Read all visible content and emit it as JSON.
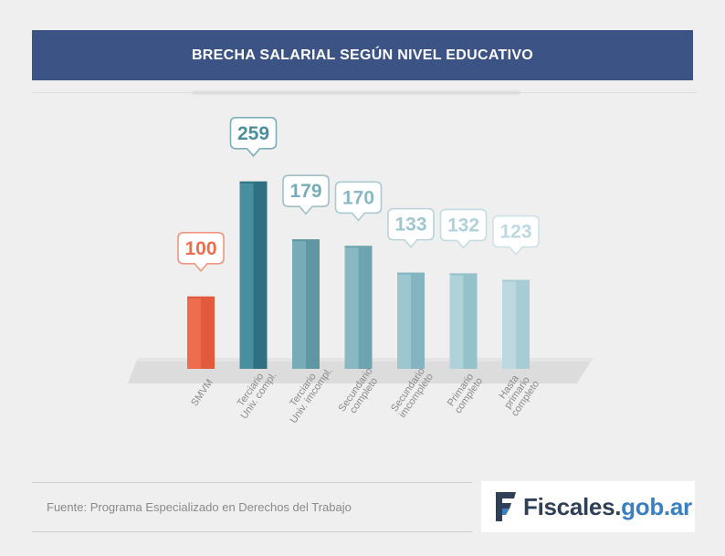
{
  "header": {
    "title": "BRECHA SALARIAL SEGÚN NIVEL EDUCATIVO"
  },
  "chart_data": {
    "type": "bar",
    "title": "BRECHA SALARIAL SEGÚN NIVEL EDUCATIVO",
    "xlabel": "",
    "ylabel": "",
    "categories": [
      [
        "SMVM"
      ],
      [
        "Terciario",
        "Univ. compl."
      ],
      [
        "Terciario",
        "Univ. imcompl."
      ],
      [
        "Secundario",
        "completo"
      ],
      [
        "Secundario",
        "imcompleto"
      ],
      [
        "Primario",
        "completo"
      ],
      [
        "Hasta",
        "primario",
        "completo"
      ]
    ],
    "values": [
      100,
      259,
      179,
      170,
      133,
      132,
      123
    ],
    "data_labels": [
      "100",
      "259",
      "179",
      "170",
      "133",
      "132",
      "123"
    ],
    "ylim": [
      0,
      270
    ],
    "grid": false,
    "legend": "none",
    "colors": {
      "highlight": "#ee6d4f",
      "highlight_dark": "#e25a3c",
      "bars": [
        "#ee6d4f",
        "#4a8f9e",
        "#78abb8",
        "#89b8c3",
        "#9ec6cf",
        "#afd1d8",
        "#bcd9df"
      ],
      "bars_dark": [
        "#e25a3c",
        "#2f7182",
        "#5e96a4",
        "#6ea4b0",
        "#83b4bf",
        "#95c1ca",
        "#a6cdd5"
      ],
      "callout_text": [
        "#ee6d4f",
        "#4a8f9e",
        "#78abb8",
        "#89b8c3",
        "#9ec6cf",
        "#afd1d8",
        "#bcd9df"
      ]
    }
  },
  "footer": {
    "source": "Fuente: Programa Especializado en Derechos del Trabajo",
    "logo_main": "Fiscales",
    "logo_dot": ".",
    "logo_suffix": "gob.ar"
  }
}
